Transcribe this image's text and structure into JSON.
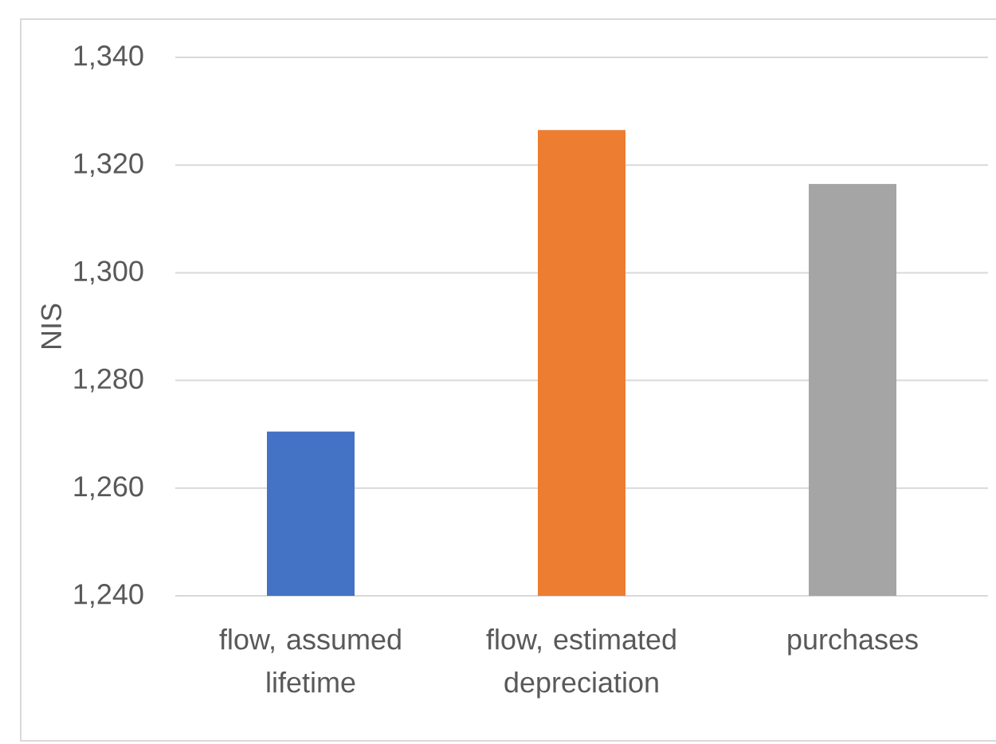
{
  "chart_data": {
    "type": "bar",
    "ylabel": "NIS",
    "categories": [
      "flow, assumed lifetime",
      "flow, estimated depreciation",
      "purchases"
    ],
    "values": [
      1270.5,
      1326.5,
      1316.5
    ],
    "colors": [
      "#4472c4",
      "#ed7d31",
      "#a5a5a5"
    ],
    "ylim": [
      1240,
      1340
    ],
    "yticks": [
      {
        "value": 1240,
        "label": "1,240"
      },
      {
        "value": 1260,
        "label": "1,260"
      },
      {
        "value": 1280,
        "label": "1,280"
      },
      {
        "value": 1300,
        "label": "1,300"
      },
      {
        "value": 1320,
        "label": "1,320"
      },
      {
        "value": 1340,
        "label": "1,340"
      }
    ],
    "grid": "y"
  }
}
